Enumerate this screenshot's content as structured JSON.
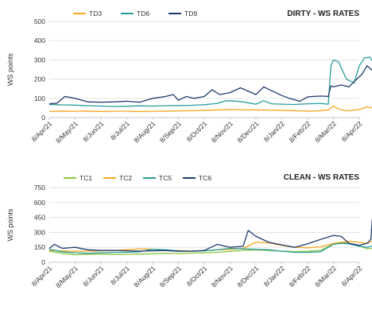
{
  "chart_data": [
    {
      "type": "line",
      "title": "DIRTY - WS RATES",
      "ylabel": "WS points",
      "xlabel": "",
      "ylim": [
        0,
        500
      ],
      "yticks": [
        0,
        100,
        200,
        300,
        400,
        500
      ],
      "x_tick_labels": [
        "8/Apr/21",
        "8/May/21",
        "8/Jun/21",
        "8/Jul/21",
        "8/Aug/21",
        "8/Sep/21",
        "8/Oct/21",
        "8/Nov/21",
        "8/Dec/21",
        "8/Jan/22",
        "8/Feb/22",
        "8/Mar/22",
        "8/Apr/22"
      ],
      "grid": true,
      "legend": "top-left",
      "series": [
        {
          "name": "TD3",
          "color": "#f5a623",
          "x": [
            0,
            0.5,
            1,
            1.5,
            2,
            2.5,
            3,
            3.5,
            4,
            4.5,
            5,
            5.5,
            6,
            6.5,
            7,
            7.5,
            8,
            8.5,
            9,
            9.5,
            10,
            10.4,
            10.8,
            11,
            11.2,
            11.5,
            12,
            12.3,
            12.5
          ],
          "values": [
            32,
            34,
            33,
            34,
            32,
            33,
            33,
            32,
            33,
            34,
            35,
            36,
            38,
            40,
            42,
            41,
            40,
            39,
            38,
            36,
            34,
            35,
            40,
            60,
            45,
            35,
            42,
            56,
            50
          ]
        },
        {
          "name": "TD6",
          "color": "#2a9d9a",
          "x": [
            0,
            0.5,
            1,
            1.5,
            2,
            2.5,
            3,
            3.5,
            4,
            4.5,
            5,
            5.5,
            6,
            6.5,
            6.8,
            7,
            7.5,
            8,
            8.3,
            8.6,
            9,
            9.5,
            10,
            10.5,
            10.8,
            10.9,
            11,
            11.2,
            11.5,
            11.8,
            12,
            12.2,
            12.4,
            12.5
          ],
          "values": [
            68,
            66,
            65,
            62,
            60,
            58,
            59,
            61,
            60,
            62,
            63,
            64,
            67,
            74,
            86,
            88,
            82,
            70,
            88,
            72,
            70,
            68,
            72,
            74,
            70,
            270,
            300,
            290,
            200,
            180,
            270,
            310,
            315,
            295
          ]
        },
        {
          "name": "TD9",
          "color": "#1f3b6e",
          "x": [
            0,
            0.3,
            0.6,
            1,
            1.5,
            2,
            2.5,
            3,
            3.5,
            4,
            4.5,
            4.8,
            5,
            5.3,
            5.6,
            6,
            6.3,
            6.6,
            7,
            7.4,
            8,
            8.3,
            8.6,
            9,
            9.3,
            9.7,
            10,
            10.5,
            10.8,
            10.9,
            11,
            11.3,
            11.6,
            11.9,
            12.1,
            12.3,
            12.5
          ],
          "values": [
            72,
            75,
            110,
            100,
            82,
            80,
            82,
            85,
            80,
            100,
            110,
            120,
            90,
            110,
            100,
            110,
            145,
            120,
            130,
            155,
            120,
            160,
            140,
            115,
            100,
            85,
            108,
            112,
            110,
            165,
            160,
            170,
            160,
            200,
            225,
            270,
            245
          ]
        }
      ]
    },
    {
      "type": "line",
      "title": "CLEAN - WS RATES",
      "ylabel": "WS points",
      "xlabel": "",
      "ylim": [
        0,
        750
      ],
      "yticks": [
        0,
        150,
        300,
        450,
        600,
        750
      ],
      "x_tick_labels": [
        "8/Apr/21",
        "8/May/21",
        "8/Jun/21",
        "8/Jul/21",
        "8/Aug/21",
        "8/Sep/21",
        "8/Oct/21",
        "8/Nov/21",
        "8/Dec/21",
        "8/Jan/22",
        "8/Feb/22",
        "8/Mar/22",
        "8/Apr/22"
      ],
      "grid": true,
      "legend": "top-left",
      "series": [
        {
          "name": "TC1",
          "color": "#8cc63f",
          "x": [
            0,
            0.5,
            1,
            1.5,
            2,
            2.5,
            3,
            3.5,
            4,
            4.5,
            5,
            5.5,
            6,
            6.5,
            7,
            7.5,
            8,
            8.5,
            9,
            9.5,
            10,
            10.5,
            11,
            11.3,
            11.6,
            12,
            12.3,
            12.5
          ],
          "values": [
            110,
            90,
            75,
            80,
            82,
            78,
            80,
            82,
            85,
            90,
            88,
            92,
            95,
            100,
            110,
            120,
            125,
            118,
            112,
            108,
            110,
            120,
            185,
            200,
            190,
            165,
            135,
            140
          ]
        },
        {
          "name": "TC2",
          "color": "#f5a623",
          "x": [
            0,
            0.5,
            1,
            1.5,
            2,
            2.5,
            3,
            3.5,
            4,
            4.5,
            5,
            5.5,
            6,
            6.5,
            7,
            7.5,
            8,
            8.5,
            9,
            9.5,
            10,
            10.5,
            11,
            11.3,
            11.6,
            12,
            12.3,
            12.5
          ],
          "values": [
            120,
            115,
            110,
            112,
            115,
            118,
            125,
            135,
            130,
            120,
            118,
            112,
            115,
            125,
            130,
            140,
            200,
            195,
            170,
            150,
            145,
            155,
            190,
            200,
            210,
            200,
            190,
            210
          ]
        },
        {
          "name": "TC5",
          "color": "#2a9d9a",
          "x": [
            0,
            0.5,
            1,
            1.5,
            2,
            2.5,
            3,
            3.5,
            4,
            4.5,
            5,
            5.5,
            6,
            6.5,
            7,
            7.5,
            8,
            8.5,
            9,
            9.5,
            10,
            10.5,
            11,
            11.3,
            11.6,
            12,
            12.3,
            12.5
          ],
          "values": [
            130,
            105,
            95,
            90,
            95,
            100,
            100,
            105,
            130,
            125,
            115,
            110,
            115,
            125,
            140,
            135,
            130,
            125,
            110,
            100,
            100,
            105,
            180,
            190,
            185,
            160,
            150,
            160
          ]
        },
        {
          "name": "TC6",
          "color": "#1f3b6e",
          "x": [
            0,
            0.2,
            0.5,
            1,
            1.5,
            2,
            2.5,
            3,
            3.5,
            4,
            4.5,
            5,
            5.5,
            6,
            6.5,
            7,
            7.5,
            7.7,
            8,
            8.5,
            9,
            9.5,
            10,
            10.5,
            11,
            11.3,
            11.6,
            12,
            12.3,
            12.45,
            12.5
          ],
          "values": [
            140,
            180,
            140,
            150,
            125,
            118,
            120,
            115,
            112,
            115,
            118,
            110,
            112,
            118,
            180,
            150,
            160,
            320,
            260,
            200,
            175,
            150,
            185,
            230,
            270,
            260,
            190,
            170,
            190,
            230,
            430
          ]
        }
      ]
    }
  ]
}
